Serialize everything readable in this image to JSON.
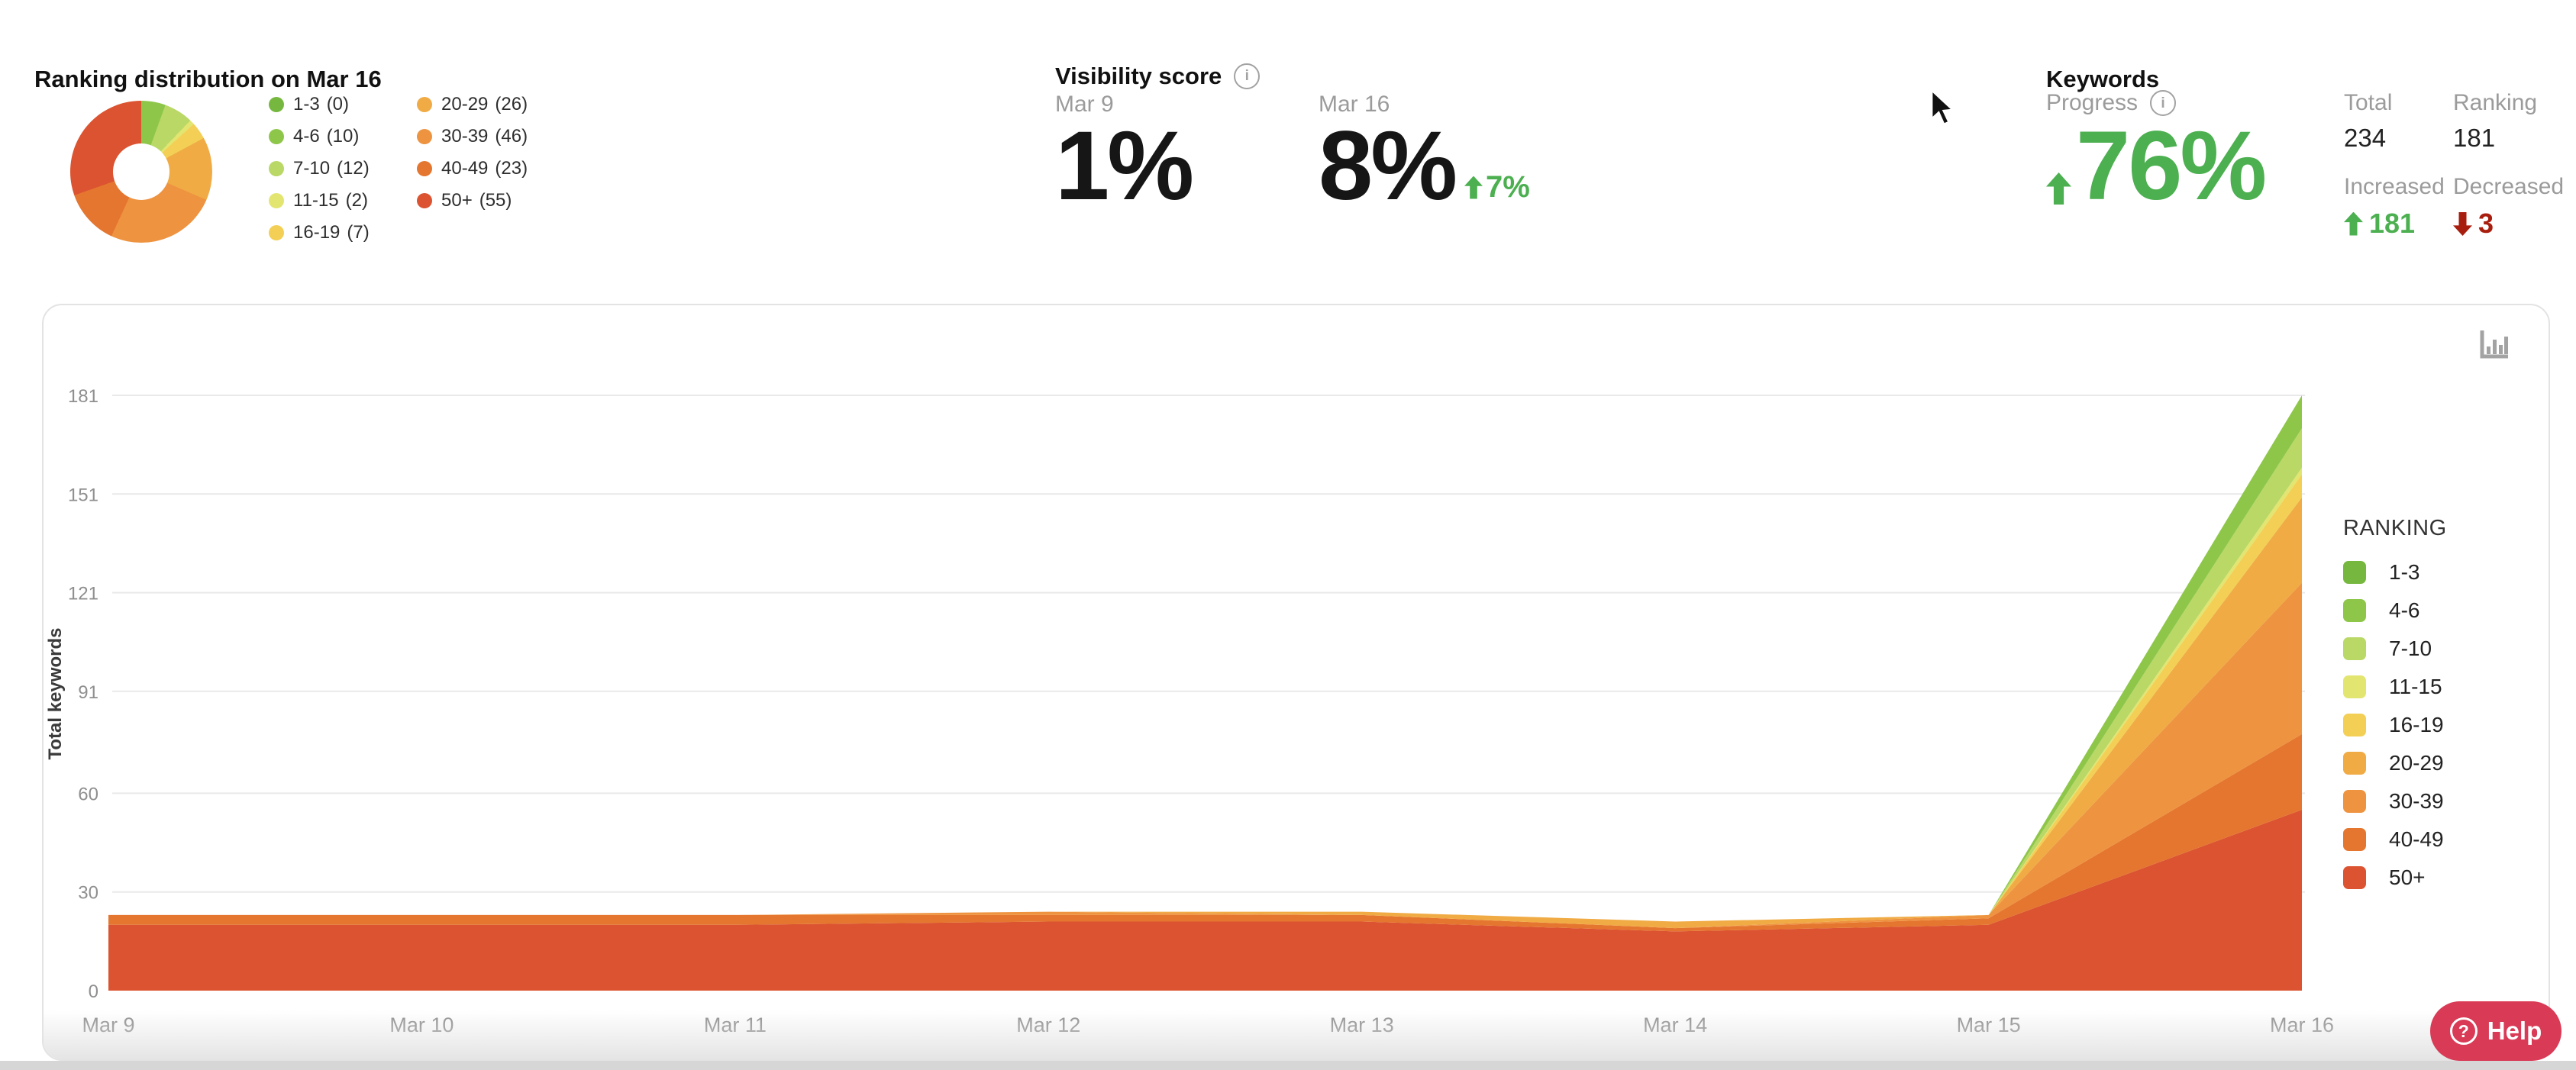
{
  "accent": {
    "green": "#4caf50",
    "red": "#a81e0e"
  },
  "icons": {
    "info": "i",
    "help": "?"
  },
  "header": {
    "ranking_distribution": {
      "title": "Ranking distribution on Mar 16",
      "items": [
        {
          "label": "1-3",
          "count": 0,
          "color": "#76b83f"
        },
        {
          "label": "4-6",
          "count": 10,
          "color": "#8ec64a"
        },
        {
          "label": "7-10",
          "count": 12,
          "color": "#b9d866"
        },
        {
          "label": "11-15",
          "count": 2,
          "color": "#e3e571"
        },
        {
          "label": "16-19",
          "count": 7,
          "color": "#f3cf55"
        },
        {
          "label": "20-29",
          "count": 26,
          "color": "#f0ab45"
        },
        {
          "label": "30-39",
          "count": 46,
          "color": "#ee9340"
        },
        {
          "label": "40-49",
          "count": 23,
          "color": "#e5762f"
        },
        {
          "label": "50+",
          "count": 55,
          "color": "#db5330"
        }
      ]
    },
    "visibility": {
      "title": "Visibility score",
      "cols": [
        {
          "date": "Mar 9",
          "value": "1%"
        },
        {
          "date": "Mar 16",
          "value": "8%",
          "delta": "7%"
        }
      ]
    },
    "keywords": {
      "title": "Keywords",
      "progress_label": "Progress",
      "progress_value": "76%",
      "stats": [
        {
          "label": "Total",
          "value": "234"
        },
        {
          "label": "Ranking",
          "value": "181"
        },
        {
          "label": "Increased",
          "value": "181",
          "direction": "up"
        },
        {
          "label": "Decreased",
          "value": "3",
          "direction": "down"
        }
      ]
    }
  },
  "chart_data": {
    "type": "area",
    "stacked": true,
    "ylabel": "Total keywords",
    "legend_title": "RANKING",
    "legend_position": "right",
    "grid": true,
    "categories": [
      "Mar 9",
      "Mar 10",
      "Mar 11",
      "Mar 12",
      "Mar 13",
      "Mar 14",
      "Mar 15",
      "Mar 16"
    ],
    "yticks": [
      0,
      30,
      60,
      91,
      121,
      151,
      181
    ],
    "ylim": [
      0,
      181
    ],
    "series": [
      {
        "name": "1-3",
        "color": "#76b83f",
        "values": [
          0,
          0,
          0,
          0,
          0,
          0,
          0,
          0
        ]
      },
      {
        "name": "4-6",
        "color": "#8ec64a",
        "values": [
          0,
          0,
          0,
          0,
          0,
          0,
          0,
          10
        ]
      },
      {
        "name": "7-10",
        "color": "#b9d866",
        "values": [
          0,
          0,
          0,
          0,
          0,
          0,
          0,
          12
        ]
      },
      {
        "name": "11-15",
        "color": "#e3e571",
        "values": [
          0,
          0,
          0,
          0,
          0,
          0,
          0,
          2
        ]
      },
      {
        "name": "16-19",
        "color": "#f3cf55",
        "values": [
          0,
          0,
          0,
          0,
          0,
          0,
          0,
          7
        ]
      },
      {
        "name": "20-29",
        "color": "#f0ab45",
        "values": [
          0,
          0,
          0,
          0,
          1,
          2,
          0,
          26
        ]
      },
      {
        "name": "30-39",
        "color": "#ee9340",
        "values": [
          0,
          0,
          0,
          1,
          0,
          0,
          1,
          46
        ]
      },
      {
        "name": "40-49",
        "color": "#e5762f",
        "values": [
          3,
          3,
          3,
          2,
          2,
          1,
          2,
          23
        ]
      },
      {
        "name": "50+",
        "color": "#db5330",
        "values": [
          20,
          20,
          20,
          21,
          21,
          18,
          20,
          55
        ]
      }
    ],
    "totals": [
      23,
      23,
      23,
      24,
      24,
      21,
      23,
      181
    ]
  },
  "help": {
    "label": "Help",
    "color": "#d93a55"
  }
}
